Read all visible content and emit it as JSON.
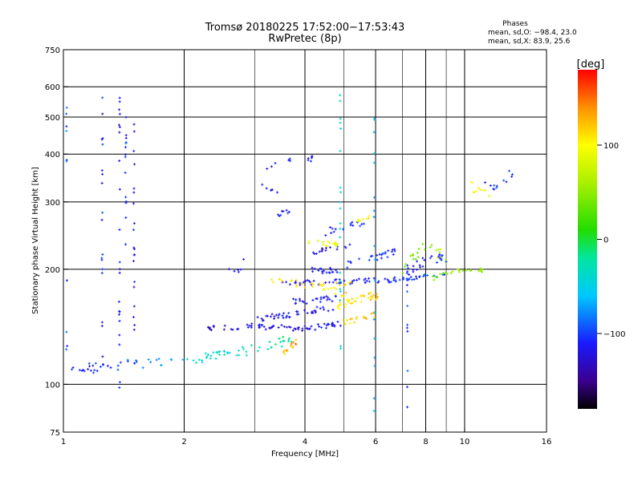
{
  "chart_data": {
    "type": "scatter",
    "title": "Tromsø 20180225 17:52:00−17:53:43",
    "subtitle": "RwPretec (8p)",
    "xlabel": "Frequency [MHz]",
    "ylabel": "Stationary phase Virtual Height [km]",
    "x_scale": "log",
    "y_scale": "log",
    "xlim": [
      1,
      16
    ],
    "ylim": [
      75,
      750
    ],
    "x_ticks": [
      1,
      2,
      4,
      6,
      8,
      10,
      16
    ],
    "x_minor_ticks": [
      3,
      5,
      7,
      9
    ],
    "y_ticks": [
      75,
      100,
      200,
      300,
      400,
      500,
      600,
      750
    ],
    "grid": true,
    "stats": {
      "heading": "Phases",
      "line1": "mean, sd,O: −98.4, 23.0",
      "line2": "mean, sd,X:  83.9, 25.6"
    },
    "colorbar": {
      "label": "[deg]",
      "range": [
        -180,
        180
      ],
      "ticks": [
        {
          "value": 100,
          "label": "100"
        },
        {
          "value": 0,
          "label": "0"
        },
        {
          "value": -100,
          "label": "−100"
        }
      ]
    },
    "traces": [
      {
        "type": "line",
        "x": [
          1.05,
          1.2,
          1.35,
          1.55,
          1.75,
          2.0,
          2.3,
          2.6,
          3.0,
          3.4,
          3.7
        ],
        "y": [
          112,
          110,
          112,
          113,
          114,
          114,
          118,
          120,
          124,
          128,
          132
        ],
        "phase": [
          -110,
          -105,
          -100,
          -95,
          -70,
          -55,
          -40,
          -30,
          -25,
          -20,
          -10
        ],
        "spread": 0.02,
        "n": 90
      },
      {
        "type": "line",
        "x": [
          3.55,
          3.7,
          3.8
        ],
        "y": [
          122,
          126,
          130
        ],
        "phase": [
          125,
          130,
          135
        ],
        "spread": 0.015,
        "n": 14
      },
      {
        "type": "line",
        "x": [
          2.3,
          2.6,
          3.0,
          3.4,
          3.8,
          4.2,
          4.6,
          4.9
        ],
        "y": [
          141,
          141,
          142,
          141,
          140,
          141,
          142,
          145
        ],
        "phase": [
          -130,
          -125,
          -120,
          -120,
          -125,
          -120,
          -115,
          -110
        ],
        "spread": 0.012,
        "n": 70
      },
      {
        "type": "line",
        "x": [
          4.9,
          5.3,
          5.7,
          6.0
        ],
        "y": [
          145,
          147,
          150,
          152
        ],
        "phase": [
          110,
          115,
          120,
          115
        ],
        "spread": 0.012,
        "n": 18
      },
      {
        "type": "line",
        "x": [
          3.0,
          3.3,
          3.6,
          4.0,
          4.4,
          4.8
        ],
        "y": [
          148,
          150,
          152,
          155,
          157,
          158
        ],
        "phase": [
          -120,
          -125,
          -115,
          -120,
          -120,
          -110
        ],
        "spread": 0.012,
        "n": 40
      },
      {
        "type": "line",
        "x": [
          3.7,
          4.0,
          4.4,
          4.8
        ],
        "y": [
          165,
          165,
          167,
          168
        ],
        "phase": [
          -115,
          -110,
          -115,
          -105
        ],
        "spread": 0.012,
        "n": 25
      },
      {
        "type": "line",
        "x": [
          4.8,
          5.3,
          5.8
        ],
        "y": [
          160,
          165,
          170
        ],
        "phase": [
          100,
          110,
          115
        ],
        "spread": 0.015,
        "n": 22
      },
      {
        "type": "line",
        "x": [
          3.5,
          4.0,
          4.5,
          5.0,
          5.5,
          6.0,
          6.8,
          7.5,
          8.2,
          9.0
        ],
        "y": [
          183,
          185,
          185,
          186,
          186,
          187,
          188,
          190,
          192,
          193
        ],
        "phase": [
          -120,
          -120,
          -115,
          -115,
          -110,
          -110,
          -105,
          -100,
          -100,
          -95
        ],
        "spread": 0.01,
        "n": 80
      },
      {
        "type": "line",
        "x": [
          3.2,
          3.6,
          4.0,
          4.6,
          5.2
        ],
        "y": [
          188,
          186,
          182,
          180,
          185
        ],
        "phase": [
          95,
          100,
          110,
          105,
          110
        ],
        "spread": 0.015,
        "n": 30
      },
      {
        "type": "line",
        "x": [
          4.6,
          5.2,
          5.8,
          6.2
        ],
        "y": [
          175,
          172,
          170,
          170
        ],
        "phase": [
          110,
          115,
          115,
          120
        ],
        "spread": 0.015,
        "n": 22
      },
      {
        "type": "line",
        "x": [
          4.0,
          4.4,
          4.8
        ],
        "y": [
          200,
          198,
          198
        ],
        "phase": [
          -120,
          -115,
          -110
        ],
        "spread": 0.012,
        "n": 18
      },
      {
        "type": "line",
        "x": [
          4.2,
          4.6,
          5.2
        ],
        "y": [
          222,
          225,
          228
        ],
        "phase": [
          -120,
          -115,
          -110
        ],
        "spread": 0.012,
        "n": 16
      },
      {
        "type": "line",
        "x": [
          4.0,
          4.5,
          5.0
        ],
        "y": [
          235,
          232,
          230
        ],
        "phase": [
          80,
          90,
          95
        ],
        "spread": 0.015,
        "n": 16
      },
      {
        "type": "line",
        "x": [
          5.0,
          5.5,
          6.0,
          6.5,
          7.0
        ],
        "y": [
          205,
          210,
          215,
          220,
          225
        ],
        "phase": [
          -110,
          -105,
          -100,
          -105,
          -110
        ],
        "spread": 0.015,
        "n": 24
      },
      {
        "type": "line",
        "x": [
          4.5,
          5.0,
          5.6
        ],
        "y": [
          250,
          260,
          265
        ],
        "phase": [
          -110,
          -110,
          -105
        ],
        "spread": 0.015,
        "n": 16
      },
      {
        "type": "line",
        "x": [
          5.4,
          5.8
        ],
        "y": [
          268,
          275
        ],
        "phase": [
          100,
          110
        ],
        "spread": 0.01,
        "n": 8
      },
      {
        "type": "line",
        "x": [
          7.0,
          7.5,
          8.0,
          8.5,
          9.0
        ],
        "y": [
          200,
          215,
          230,
          225,
          210
        ],
        "phase": [
          50,
          40,
          45,
          55,
          70
        ],
        "spread": 0.02,
        "n": 24
      },
      {
        "type": "line",
        "x": [
          7.0,
          7.6,
          8.4,
          9.0
        ],
        "y": [
          190,
          205,
          215,
          210
        ],
        "phase": [
          -110,
          -120,
          -110,
          -100
        ],
        "spread": 0.02,
        "n": 24
      },
      {
        "type": "line",
        "x": [
          8.3,
          9.0,
          9.8,
          10.5,
          11.2
        ],
        "y": [
          190,
          195,
          200,
          200,
          198
        ],
        "phase": [
          40,
          45,
          60,
          55,
          50
        ],
        "spread": 0.012,
        "n": 25
      },
      {
        "type": "line",
        "x": [
          10.4,
          11.0,
          11.6
        ],
        "y": [
          330,
          320,
          315
        ],
        "phase": [
          90,
          100,
          85
        ],
        "spread": 0.02,
        "n": 10
      },
      {
        "type": "line",
        "x": [
          10.8,
          11.5,
          12.0,
          12.6,
          13.5
        ],
        "y": [
          350,
          335,
          330,
          340,
          370
        ],
        "phase": [
          -100,
          -110,
          -100,
          -105,
          -95
        ],
        "spread": 0.02,
        "n": 12
      },
      {
        "type": "line",
        "x": [
          3.3,
          3.5,
          3.7
        ],
        "y": [
          275,
          280,
          285
        ],
        "phase": [
          -115,
          -110,
          -105
        ],
        "spread": 0.01,
        "n": 8
      },
      {
        "type": "line",
        "x": [
          3.1,
          3.3,
          3.5
        ],
        "y": [
          330,
          325,
          320
        ],
        "phase": [
          -115,
          -115,
          -110
        ],
        "spread": 0.01,
        "n": 6
      },
      {
        "type": "line",
        "x": [
          3.2,
          3.5,
          3.7
        ],
        "y": [
          370,
          380,
          385
        ],
        "phase": [
          -115,
          -110,
          -105
        ],
        "spread": 0.01,
        "n": 6
      },
      {
        "type": "line",
        "x": [
          4.0,
          4.2
        ],
        "y": [
          385,
          390
        ],
        "phase": [
          -120,
          -115
        ],
        "spread": 0.01,
        "n": 6
      },
      {
        "type": "line",
        "x": [
          2.5,
          2.7,
          2.9
        ],
        "y": [
          210,
          200,
          210
        ],
        "phase": [
          -120,
          -130,
          -110
        ],
        "spread": 0.02,
        "n": 6
      },
      {
        "type": "vline",
        "x": 1.25,
        "y": [
          110,
          580
        ],
        "phase": -110,
        "n": 18
      },
      {
        "type": "vline",
        "x": 1.38,
        "y": [
          95,
          580
        ],
        "phase": -115,
        "n": 22
      },
      {
        "type": "vline",
        "x": 1.5,
        "y": [
          130,
          500
        ],
        "phase": -120,
        "n": 20
      },
      {
        "type": "vline",
        "x": 1.43,
        "y": [
          230,
          500
        ],
        "phase": -100,
        "n": 14
      },
      {
        "type": "vline",
        "x": 4.9,
        "y": [
          105,
          640
        ],
        "phase": -40,
        "n": 20
      },
      {
        "type": "vline",
        "x": 5.96,
        "y": [
          80,
          500
        ],
        "phase": -60,
        "n": 18
      },
      {
        "type": "vline",
        "x": 7.2,
        "y": [
          85,
          250
        ],
        "phase": -100,
        "n": 12
      },
      {
        "type": "vline",
        "x": 1.02,
        "y": [
          110,
          600
        ],
        "phase": -90,
        "n": 10
      }
    ]
  }
}
